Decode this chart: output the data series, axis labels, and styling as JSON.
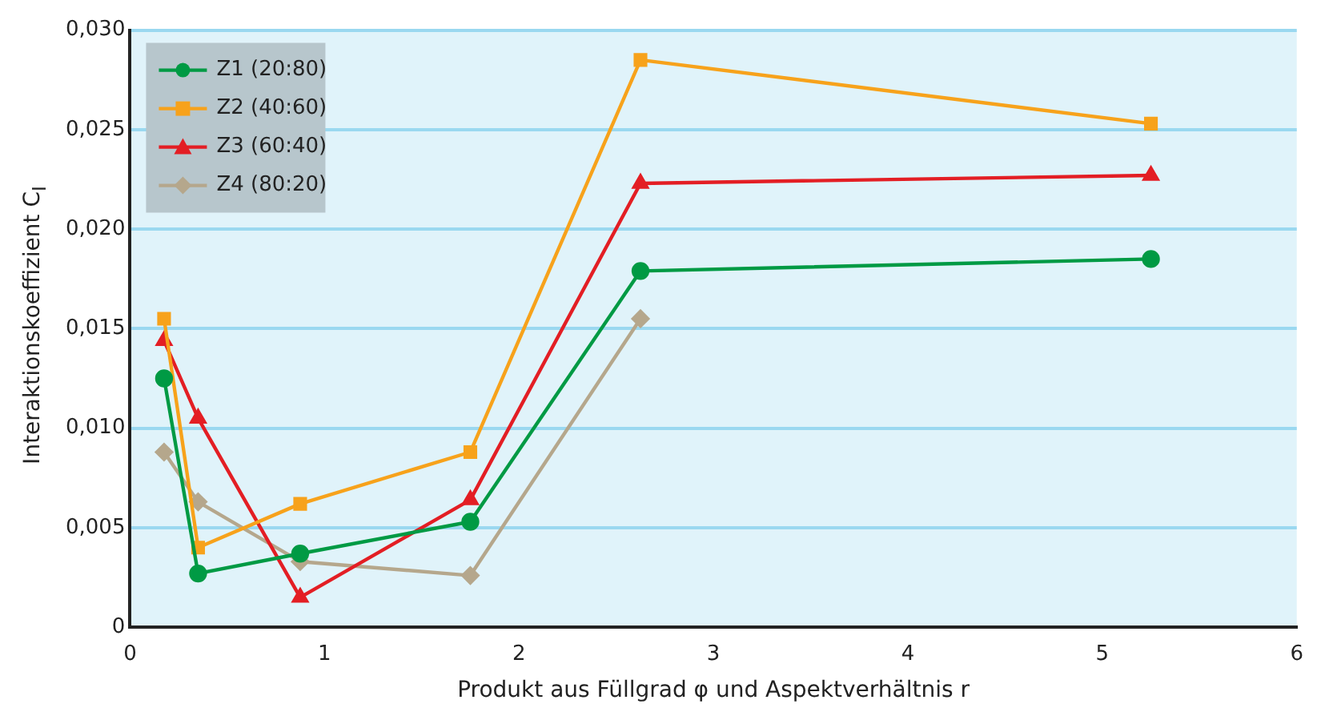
{
  "chart_data": {
    "type": "line",
    "xlabel": "Produkt aus Füllgrad φ und Aspektverhältnis r",
    "ylabel": "Interaktionskoeffizient C$_{I}$",
    "x": [
      0.175,
      0.35,
      0.875,
      1.75,
      2.625,
      5.25
    ],
    "series": [
      {
        "name": "Z1 (20:80)",
        "color": "#009a44",
        "marker": "circle",
        "values": [
          0.0125,
          0.0027,
          0.0037,
          0.0053,
          0.0179,
          0.0185
        ]
      },
      {
        "name": "Z2 (40:60)",
        "color": "#f7a21b",
        "marker": "square",
        "values": [
          0.0155,
          0.004,
          0.0062,
          0.0088,
          0.0285,
          0.0253
        ]
      },
      {
        "name": "Z3 (60:40)",
        "color": "#e31e24",
        "marker": "triangle",
        "values": [
          0.0144,
          0.0105,
          0.0015,
          0.0064,
          0.0223,
          0.0227
        ]
      },
      {
        "name": "Z4 (80:20)",
        "color": "#b5a78c",
        "marker": "diamond",
        "values": [
          0.0088,
          0.0063,
          0.0033,
          0.0026,
          0.0155,
          null
        ]
      }
    ],
    "xlim": [
      0,
      6
    ],
    "xticks": [
      0,
      1,
      2,
      3,
      4,
      5,
      6
    ],
    "ylim": [
      0,
      0.03
    ],
    "yticks": [
      0,
      {
        "value": 0.005,
        "label": "0,005"
      },
      {
        "value": 0.01,
        "label": "0,010"
      },
      {
        "value": 0.015,
        "label": "0,015"
      },
      {
        "value": 0.02,
        "label": "0,020"
      },
      {
        "value": 0.025,
        "label": "0,025"
      },
      {
        "value": 0.03,
        "label": "0,030"
      }
    ],
    "grid": "y",
    "legend": "top left"
  }
}
